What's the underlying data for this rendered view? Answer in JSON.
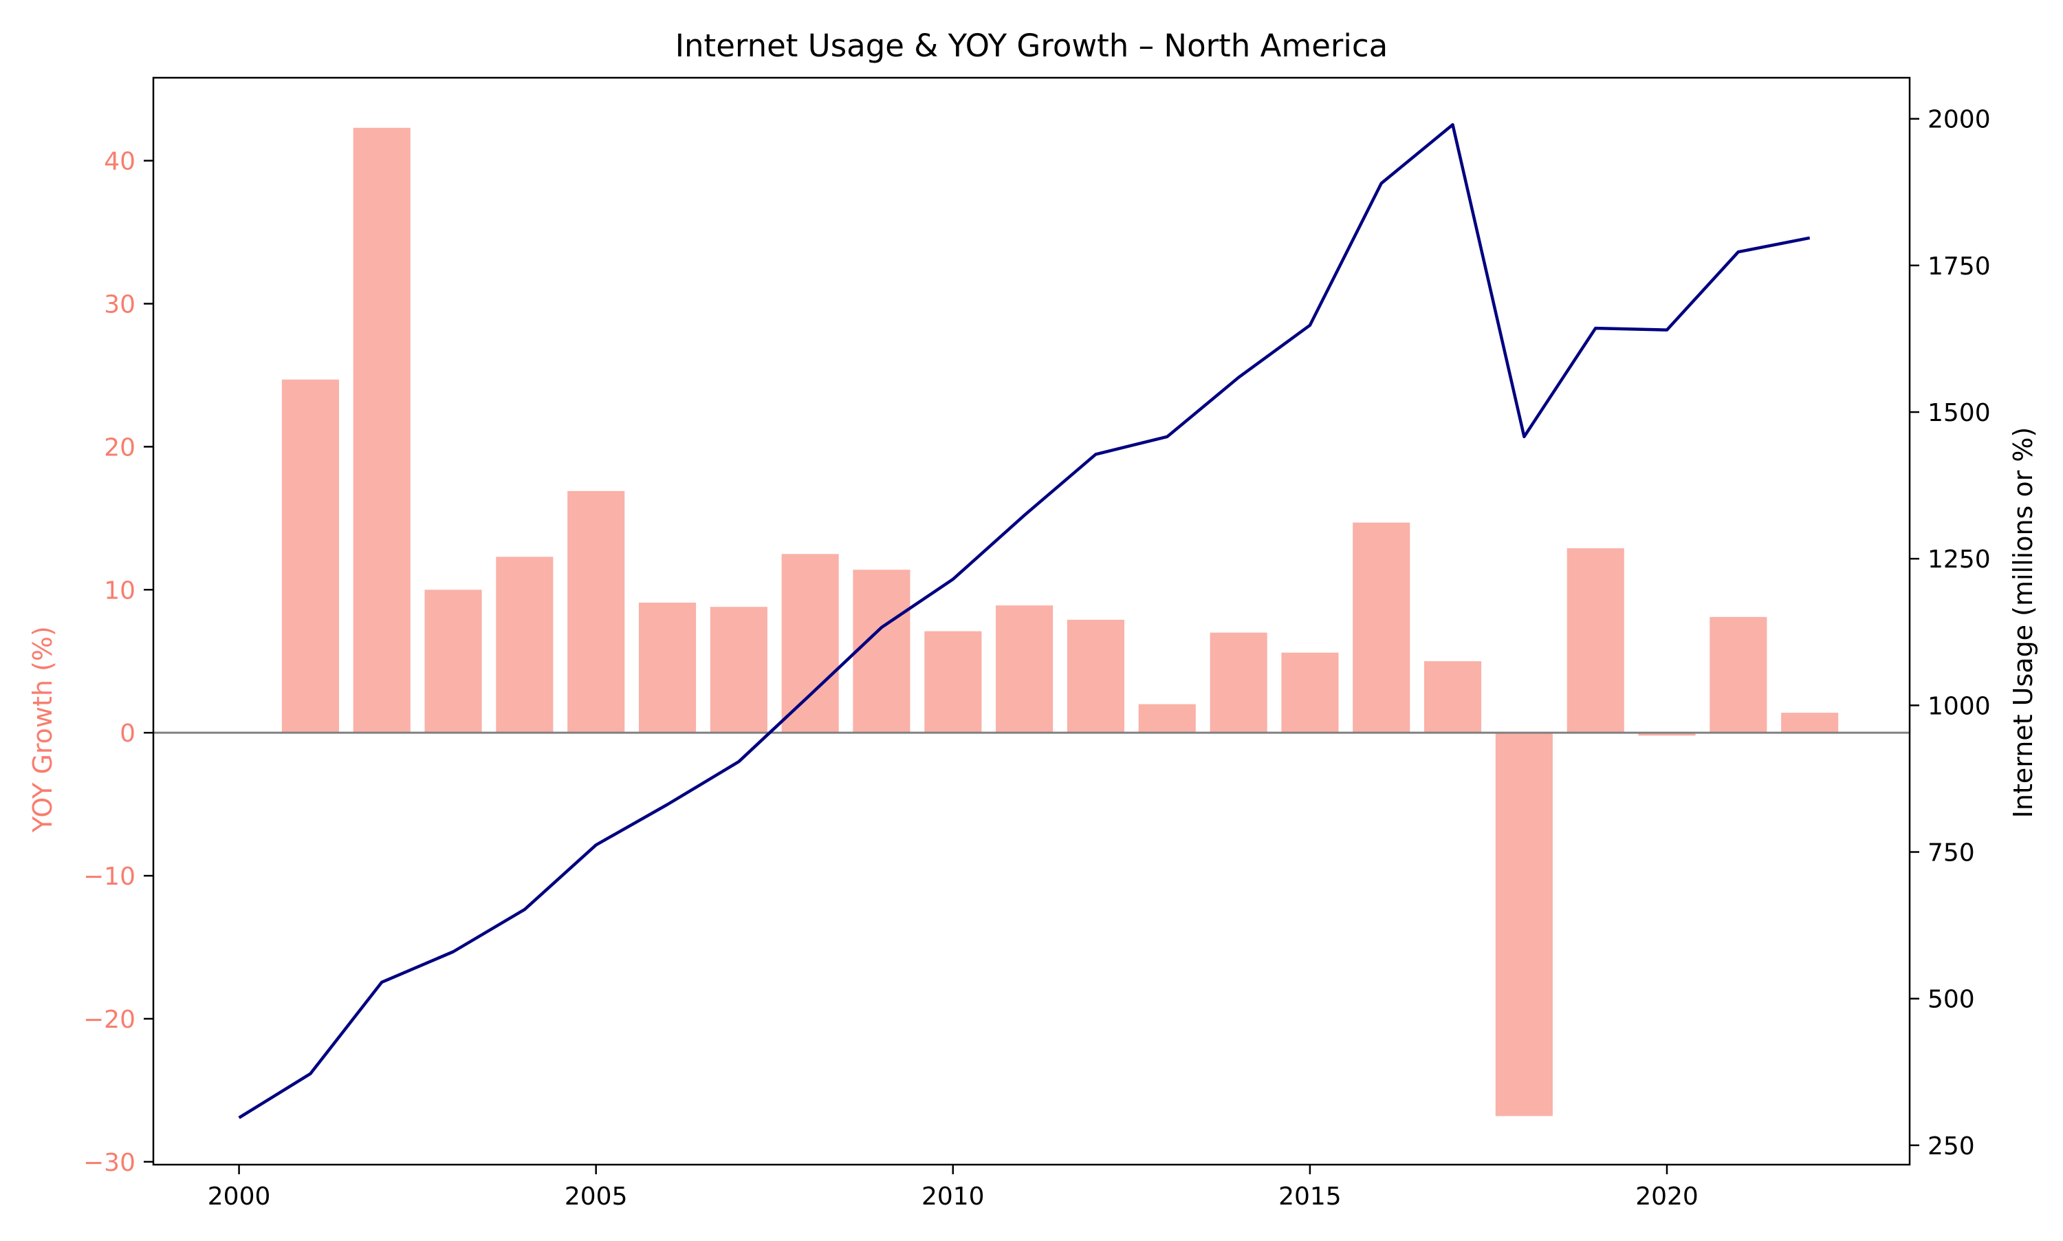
{
  "colors": {
    "bar": "#fab1a8",
    "line": "#000080",
    "left_axis": "#f87d6e",
    "right_axis": "#000000",
    "zero_line": "#808080"
  },
  "chart_data": {
    "type": "bar",
    "title": "Internet Usage & YOY Growth – North America",
    "xlabel": "",
    "ylabel_left": "YOY Growth (%)",
    "ylabel_right": "Internet Usage (millions or %)",
    "xlim": [
      1998.8,
      2023.4
    ],
    "x_ticks": [
      2000,
      2005,
      2010,
      2015,
      2020
    ],
    "x_tick_labels": [
      "2000",
      "2005",
      "2010",
      "2015",
      "2020"
    ],
    "ylim_left": [
      -30.2,
      45.8
    ],
    "y_left_ticks": [
      40,
      30,
      20,
      10,
      0,
      -10,
      -20,
      -30
    ],
    "y_left_tick_labels": [
      "40",
      "30",
      "20",
      "10",
      "0",
      "−10",
      "−20",
      "−30"
    ],
    "ylim_right": [
      217,
      2070
    ],
    "y_right_ticks": [
      2000,
      1750,
      1500,
      1250,
      1000,
      750,
      500,
      250
    ],
    "y_right_tick_labels": [
      "2000",
      "1750",
      "1500",
      "1250",
      "1000",
      "750",
      "500",
      "250"
    ],
    "grid": false,
    "series": [
      {
        "type": "bar",
        "axis": "left",
        "x": [
          2001,
          2002,
          2003,
          2004,
          2005,
          2006,
          2007,
          2008,
          2009,
          2010,
          2011,
          2012,
          2013,
          2014,
          2015,
          2016,
          2017,
          2018,
          2019,
          2020,
          2021,
          2022
        ],
        "values": [
          24.7,
          42.3,
          10.0,
          12.3,
          16.9,
          9.1,
          8.8,
          12.5,
          11.4,
          7.1,
          8.9,
          7.9,
          2.0,
          7.0,
          5.6,
          14.7,
          5.0,
          -26.8,
          12.9,
          -0.2,
          8.1,
          1.4
        ]
      },
      {
        "type": "line",
        "axis": "right",
        "x": [
          2000,
          2001,
          2002,
          2003,
          2004,
          2005,
          2006,
          2007,
          2008,
          2009,
          2010,
          2011,
          2012,
          2013,
          2014,
          2015,
          2016,
          2017,
          2018,
          2019,
          2020,
          2021,
          2022
        ],
        "values": [
          297,
          372,
          528,
          580,
          652,
          762,
          831,
          904,
          1018,
          1133,
          1215,
          1324,
          1428,
          1458,
          1559,
          1648,
          1890,
          1990,
          1458,
          1643,
          1640,
          1773,
          1797
        ]
      }
    ]
  }
}
